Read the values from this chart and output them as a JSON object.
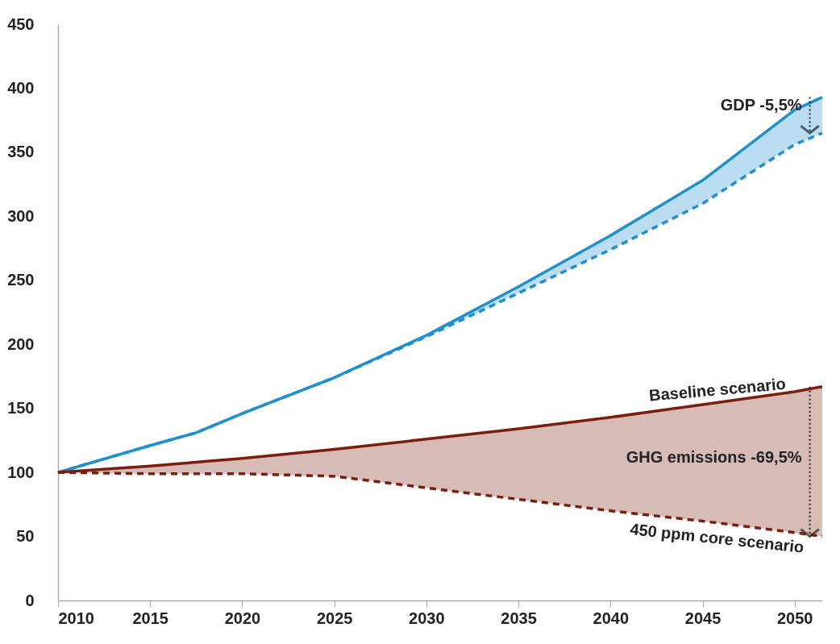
{
  "chart_data": {
    "type": "line",
    "x": [
      2010,
      2015,
      2017.5,
      2020,
      2025,
      2030,
      2035,
      2040,
      2045,
      2050,
      2051.5
    ],
    "xlim": [
      2010,
      2051.5
    ],
    "xticks": [
      2010,
      2015,
      2020,
      2025,
      2030,
      2035,
      2040,
      2045,
      2050
    ],
    "ylim": [
      0,
      450
    ],
    "yticks": [
      0,
      50,
      100,
      150,
      200,
      250,
      300,
      350,
      400,
      450
    ],
    "grid": false,
    "marker": "none",
    "series": [
      {
        "color": "#1f8fcf",
        "line_style": "solid",
        "values": [
          100,
          121,
          131,
          146,
          174,
          207,
          245,
          285,
          328,
          383,
          393
        ]
      },
      {
        "color": "#1f8fcf",
        "line_style": "dashed",
        "values": [
          100,
          121,
          131,
          146,
          174,
          206,
          240,
          274,
          310,
          356,
          365
        ],
        "lower": [
          100,
          121,
          131,
          146,
          174,
          206,
          240,
          274,
          310,
          356,
          365
        ],
        "upper": [
          100,
          121,
          131,
          146,
          174,
          207,
          245,
          285,
          328,
          383,
          393
        ]
      },
      {
        "name": "Baseline scenario",
        "color": "#7a1e0e",
        "line_style": "solid",
        "values": [
          100,
          105,
          108,
          111,
          118,
          126,
          134,
          143,
          153,
          163,
          167
        ]
      },
      {
        "name": "450 ppm core scenario",
        "color": "#7a1e0e",
        "line_style": "dashed",
        "values": [
          100,
          99,
          99,
          99,
          97,
          88,
          79,
          70,
          62,
          53,
          50
        ],
        "lower": [
          100,
          99,
          99,
          99,
          97,
          88,
          79,
          70,
          62,
          53,
          50
        ],
        "upper": [
          100,
          105,
          108,
          111,
          118,
          126,
          134,
          143,
          153,
          163,
          167
        ]
      }
    ],
    "annotations": [
      "GDP -5,5%",
      "GHG emissions -69,5%"
    ]
  }
}
